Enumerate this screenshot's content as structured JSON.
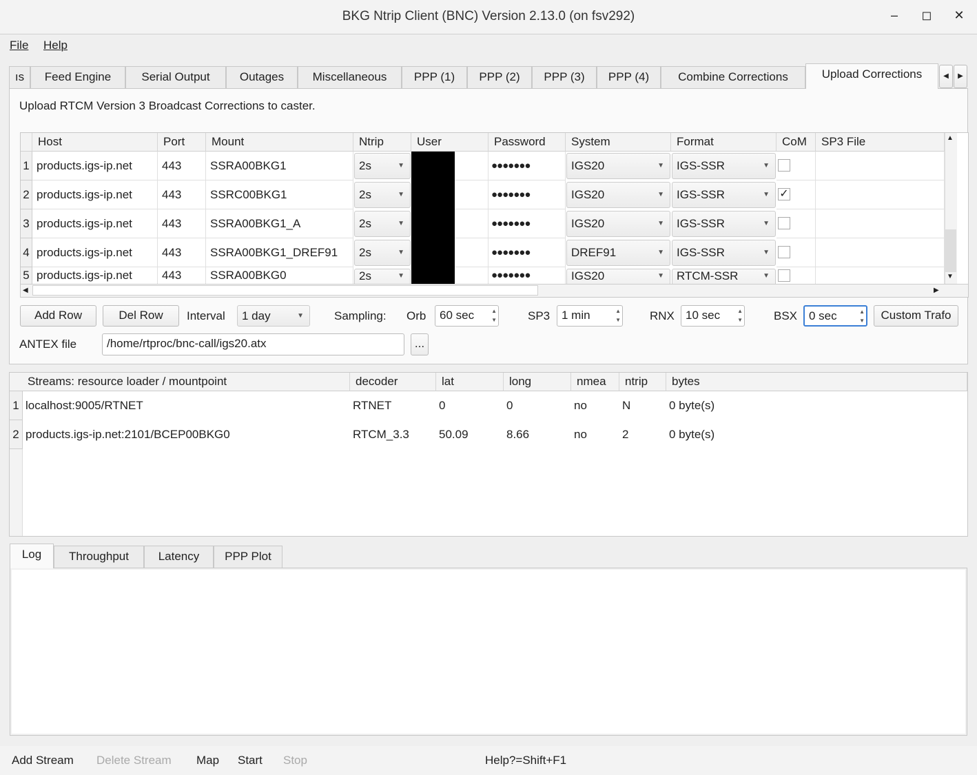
{
  "window": {
    "title": "BKG Ntrip Client (BNC) Version 2.13.0 (on fsv292)",
    "minimize": "–",
    "maximize": "◻",
    "close": "✕"
  },
  "menu": [
    "File",
    "Help"
  ],
  "tabs": [
    "ıs",
    "Feed Engine",
    "Serial Output",
    "Outages",
    "Miscellaneous",
    "PPP (1)",
    "PPP (2)",
    "PPP (3)",
    "PPP (4)",
    "Combine Corrections",
    "Upload Corrections"
  ],
  "active_tab": "Upload Corrections",
  "upload": {
    "description": "Upload RTCM Version 3 Broadcast Corrections to caster.",
    "columns": [
      "Host",
      "Port",
      "Mount",
      "Ntrip",
      "User",
      "Password",
      "System",
      "Format",
      "CoM",
      "SP3 File"
    ],
    "rows": [
      {
        "n": "1",
        "host": "products.igs-ip.net",
        "port": "443",
        "mount": "SSRA00BKG1",
        "ntrip": "2s",
        "password": "●●●●●●●",
        "system": "IGS20",
        "format": "IGS-SSR",
        "com": false,
        "sp3": ""
      },
      {
        "n": "2",
        "host": "products.igs-ip.net",
        "port": "443",
        "mount": "SSRC00BKG1",
        "ntrip": "2s",
        "password": "●●●●●●●",
        "system": "IGS20",
        "format": "IGS-SSR",
        "com": true,
        "sp3": ""
      },
      {
        "n": "3",
        "host": "products.igs-ip.net",
        "port": "443",
        "mount": "SSRA00BKG1_A",
        "ntrip": "2s",
        "password": "●●●●●●●",
        "system": "IGS20",
        "format": "IGS-SSR",
        "com": false,
        "sp3": ""
      },
      {
        "n": "4",
        "host": "products.igs-ip.net",
        "port": "443",
        "mount": "SSRA00BKG1_DREF91",
        "ntrip": "2s",
        "password": "●●●●●●●",
        "system": "DREF91",
        "format": "IGS-SSR",
        "com": false,
        "sp3": ""
      },
      {
        "n": "5",
        "host": "products.igs-ip.net",
        "port": "443",
        "mount": "SSRA00BKG0",
        "ntrip": "2s",
        "password": "●●●●●●●",
        "system": "IGS20",
        "format": "RTCM-SSR",
        "com": false,
        "sp3": ""
      }
    ],
    "add_row": "Add Row",
    "del_row": "Del Row",
    "interval_label": "Interval",
    "interval": "1 day",
    "sampling_label": "Sampling:",
    "orb_label": "Orb",
    "orb": "60 sec",
    "sp3_label": "SP3",
    "sp3": "1 min",
    "rnx_label": "RNX",
    "rnx": "10 sec",
    "bsx_label": "BSX",
    "bsx": "0 sec",
    "custom_trafo": "Custom Trafo",
    "antex_label": "ANTEX file",
    "antex": "/home/rtproc/bnc-call/igs20.atx",
    "browse": "..."
  },
  "streams": {
    "columns": [
      "Streams:   resource loader / mountpoint",
      "decoder",
      "lat",
      "long",
      "nmea",
      "ntrip",
      "bytes"
    ],
    "rows": [
      {
        "n": "1",
        "mount": "localhost:9005/RTNET",
        "decoder": "RTNET",
        "lat": "0",
        "long": "0",
        "nmea": "no",
        "ntrip": "N",
        "bytes": "0 byte(s)"
      },
      {
        "n": "2",
        "mount": "products.igs-ip.net:2101/BCEP00BKG0",
        "decoder": "RTCM_3.3",
        "lat": "50.09",
        "long": "8.66",
        "nmea": "no",
        "ntrip": "2",
        "bytes": "0 byte(s)"
      }
    ]
  },
  "log_tabs": [
    "Log",
    "Throughput",
    "Latency",
    "PPP Plot"
  ],
  "bottom": {
    "add_stream": "Add Stream",
    "delete_stream": "Delete Stream",
    "map": "Map",
    "start": "Start",
    "stop": "Stop",
    "help": "Help?=Shift+F1"
  }
}
